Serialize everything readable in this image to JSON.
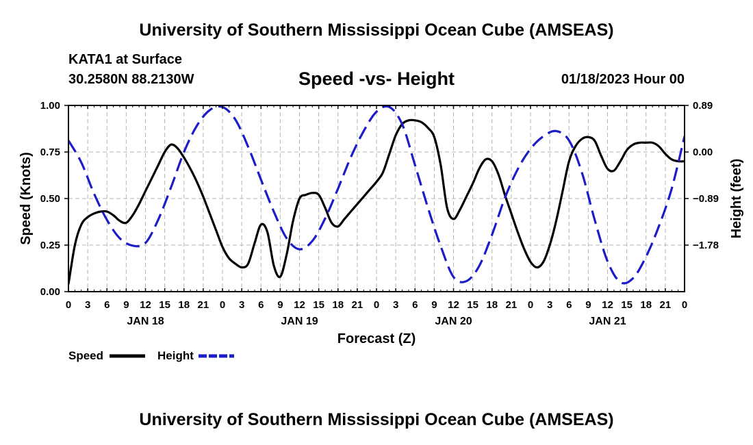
{
  "header": {
    "title": "University of Southern Mississippi Ocean Cube (AMSEAS)",
    "station": "KATA1 at Surface",
    "coords": "30.2580N  88.2130W",
    "subtitle": "Speed -vs- Height",
    "datetime": "01/18/2023 Hour 00",
    "footer": "University of Southern Mississippi Ocean Cube (AMSEAS)"
  },
  "chart_data": {
    "type": "line",
    "xlabel": "Forecast (Z)",
    "ylabel_left": "Speed (Knots)",
    "ylabel_right": "Height (feet)",
    "x_unit": "hours from 01/18/2023 00Z",
    "xlim": [
      0,
      96
    ],
    "ylim_left": [
      0,
      1.0
    ],
    "ylim_right": [
      -2.67,
      0.89
    ],
    "grid": true,
    "legend_position": "bottom-left",
    "x_tick_labels": [
      "0",
      "3",
      "6",
      "9",
      "12",
      "15",
      "18",
      "21",
      "0",
      "3",
      "6",
      "9",
      "12",
      "15",
      "18",
      "21",
      "0",
      "3",
      "6",
      "9",
      "12",
      "15",
      "18",
      "21",
      "0",
      "3",
      "6",
      "9",
      "12",
      "15",
      "18",
      "21",
      "0"
    ],
    "day_labels": [
      {
        "label": "JAN 18",
        "hour": 12
      },
      {
        "label": "JAN 19",
        "hour": 36
      },
      {
        "label": "JAN 20",
        "hour": 60
      },
      {
        "label": "JAN 21",
        "hour": 84
      }
    ],
    "left_ticks": [
      {
        "label": "0.00",
        "value": 0
      },
      {
        "label": "0.25",
        "value": 0.25
      },
      {
        "label": "0.50",
        "value": 0.5
      },
      {
        "label": "0.75",
        "value": 0.75
      },
      {
        "label": "1.00",
        "value": 1.0
      }
    ],
    "right_ticks": [
      {
        "label": "0.89",
        "value": 0.89
      },
      {
        "label": "0.00",
        "value": 0
      },
      {
        "label": "−0.89",
        "value": -0.89
      },
      {
        "label": "−1.78",
        "value": -1.78
      }
    ],
    "series": [
      {
        "name": "Speed",
        "axis": "left",
        "color": "#000000",
        "dash": "solid",
        "x": [
          0,
          1,
          2,
          3,
          4,
          5,
          6,
          7,
          8,
          9,
          10,
          11,
          12,
          13,
          14,
          15,
          16,
          17,
          18,
          19,
          20,
          21,
          22,
          23,
          24,
          25,
          26,
          27,
          28,
          29,
          30,
          31,
          32,
          33,
          34,
          35,
          36,
          37,
          38,
          39,
          40,
          41,
          42,
          43,
          44,
          45,
          46,
          47,
          48,
          49,
          50,
          51,
          52,
          53,
          54,
          55,
          56,
          57,
          58,
          59,
          60,
          61,
          62,
          63,
          64,
          65,
          66,
          67,
          68,
          69,
          70,
          71,
          72,
          73,
          74,
          75,
          76,
          77,
          78,
          79,
          80,
          81,
          82,
          83,
          84,
          85,
          86,
          87,
          88,
          89,
          90,
          91,
          92,
          93,
          94,
          95,
          96
        ],
        "values": [
          0.04,
          0.25,
          0.36,
          0.4,
          0.42,
          0.43,
          0.43,
          0.41,
          0.38,
          0.37,
          0.41,
          0.47,
          0.54,
          0.61,
          0.68,
          0.75,
          0.79,
          0.77,
          0.72,
          0.66,
          0.59,
          0.51,
          0.42,
          0.33,
          0.24,
          0.18,
          0.15,
          0.13,
          0.15,
          0.26,
          0.36,
          0.32,
          0.14,
          0.08,
          0.2,
          0.38,
          0.5,
          0.52,
          0.53,
          0.52,
          0.45,
          0.37,
          0.35,
          0.39,
          0.43,
          0.47,
          0.51,
          0.55,
          0.59,
          0.64,
          0.74,
          0.84,
          0.9,
          0.92,
          0.92,
          0.91,
          0.88,
          0.83,
          0.68,
          0.45,
          0.39,
          0.44,
          0.51,
          0.58,
          0.66,
          0.71,
          0.7,
          0.63,
          0.52,
          0.42,
          0.32,
          0.23,
          0.16,
          0.13,
          0.16,
          0.25,
          0.38,
          0.54,
          0.7,
          0.78,
          0.82,
          0.83,
          0.81,
          0.73,
          0.66,
          0.65,
          0.7,
          0.76,
          0.79,
          0.8,
          0.8,
          0.8,
          0.78,
          0.74,
          0.71,
          0.7,
          0.7
        ]
      },
      {
        "name": "Height",
        "axis": "right",
        "color": "#1c1cc8",
        "dash": "dashed",
        "x": [
          0,
          2,
          4,
          6,
          8,
          10,
          12,
          14,
          16,
          18,
          20,
          22,
          24,
          26,
          28,
          30,
          32,
          34,
          36,
          38,
          40,
          42,
          44,
          46,
          48,
          50,
          52,
          54,
          56,
          58,
          60,
          62,
          64,
          66,
          68,
          70,
          72,
          74,
          76,
          78,
          80,
          82,
          84,
          86,
          88,
          90,
          92,
          94,
          96
        ],
        "values": [
          0.22,
          -0.2,
          -0.8,
          -1.3,
          -1.65,
          -1.79,
          -1.74,
          -1.29,
          -0.67,
          0.0,
          0.5,
          0.8,
          0.86,
          0.62,
          0.1,
          -0.53,
          -1.14,
          -1.65,
          -1.86,
          -1.7,
          -1.27,
          -0.7,
          -0.1,
          0.4,
          0.77,
          0.86,
          0.53,
          -0.25,
          -1.06,
          -1.8,
          -2.39,
          -2.47,
          -2.18,
          -1.58,
          -0.88,
          -0.33,
          0.06,
          0.3,
          0.4,
          0.22,
          -0.39,
          -1.3,
          -2.09,
          -2.49,
          -2.41,
          -2.0,
          -1.42,
          -0.7,
          0.3
        ]
      }
    ]
  }
}
